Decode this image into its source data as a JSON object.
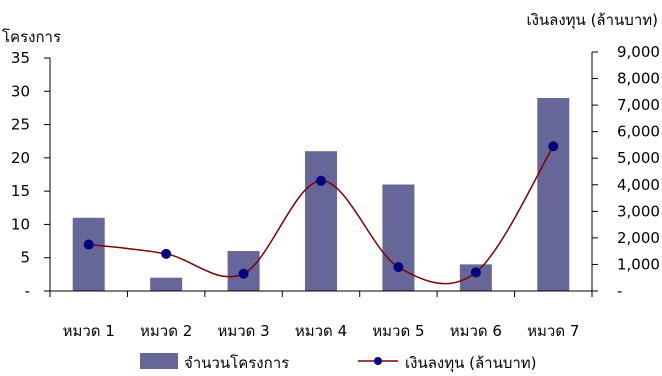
{
  "chart_data": {
    "type": "bar",
    "categories": [
      "หมวด 1",
      "หมวด 2",
      "หมวด 3",
      "หมวด 4",
      "หมวด 5",
      "หมวด 6",
      "หมวด 7"
    ],
    "series": [
      {
        "name": "จำนวนโครงการ",
        "type": "bar",
        "axis": "left",
        "color": "#666699",
        "values": [
          11,
          2,
          6,
          21,
          16,
          4,
          29
        ]
      },
      {
        "name": "เงินลงทุน (ล้านบาท)",
        "type": "line",
        "axis": "right",
        "line_color": "#800000",
        "marker_color": "#000080",
        "smooth": true,
        "values": [
          1750,
          1400,
          650,
          4150,
          900,
          700,
          5450
        ]
      }
    ],
    "y_left": {
      "label": "โครงการ",
      "range": [
        0,
        35
      ],
      "ticks": [
        {
          "value": 0,
          "label": "-"
        },
        {
          "value": 5,
          "label": "5"
        },
        {
          "value": 10,
          "label": "10"
        },
        {
          "value": 15,
          "label": "15"
        },
        {
          "value": 20,
          "label": "20"
        },
        {
          "value": 25,
          "label": "25"
        },
        {
          "value": 30,
          "label": "30"
        },
        {
          "value": 35,
          "label": "35"
        }
      ]
    },
    "y_right": {
      "label": "เงินลงทุน (ล้านบาท)",
      "range": [
        0,
        9000
      ],
      "ticks": [
        {
          "value": 0,
          "label": "-"
        },
        {
          "value": 1000,
          "label": "1,000"
        },
        {
          "value": 2000,
          "label": "2,000"
        },
        {
          "value": 3000,
          "label": "3,000"
        },
        {
          "value": 4000,
          "label": "4,000"
        },
        {
          "value": 5000,
          "label": "5,000"
        },
        {
          "value": 6000,
          "label": "6,000"
        },
        {
          "value": 7000,
          "label": "7,000"
        },
        {
          "value": 8000,
          "label": "8,000"
        },
        {
          "value": 9000,
          "label": "9,000"
        }
      ]
    },
    "grid": false,
    "legend": "bottom"
  }
}
